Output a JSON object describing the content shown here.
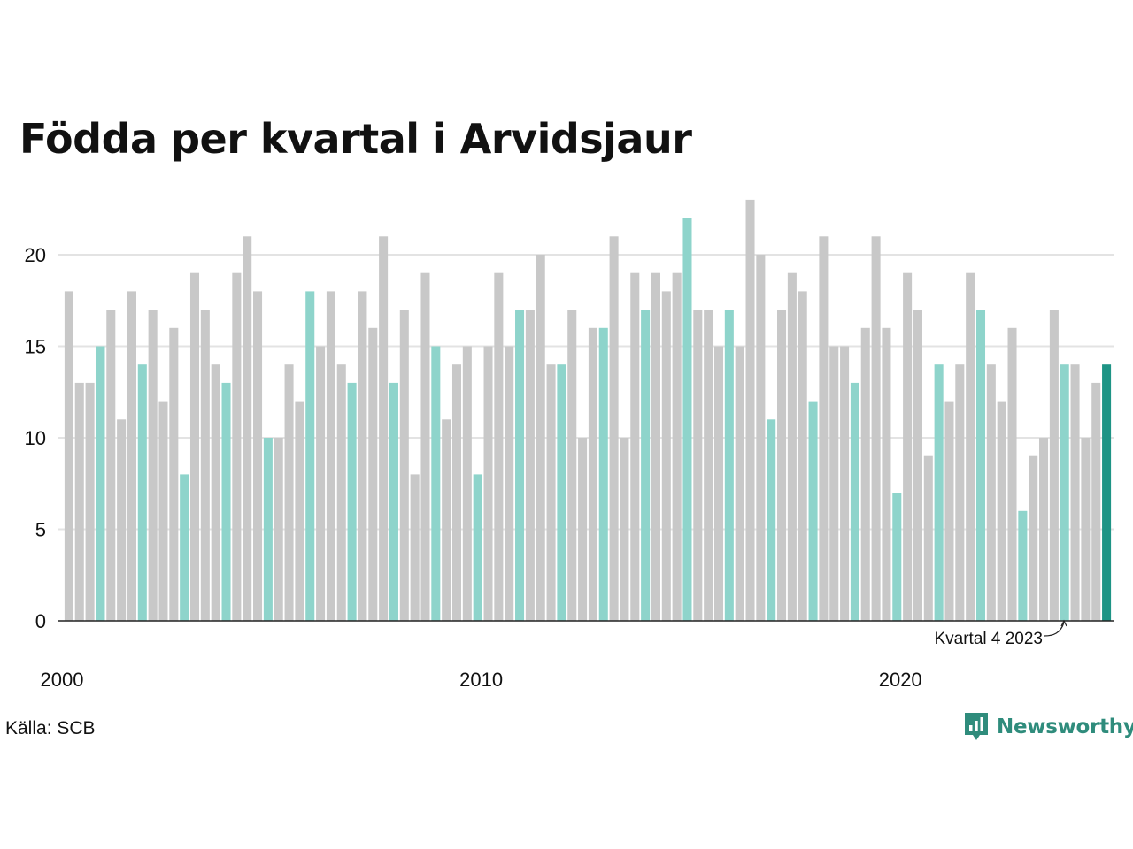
{
  "title": "Födda per kvartal i Arvidsjaur",
  "source": "Källa: SCB",
  "brand": "Newsworthy",
  "colors": {
    "bar_default": "#c8c8c8",
    "bar_q4": "#8ed4cb",
    "bar_latest": "#1e9485",
    "grid": "#e3e3e3",
    "brand": "#2f8c7c"
  },
  "chart_data": {
    "type": "bar",
    "title": "Födda per kvartal i Arvidsjaur",
    "xlabel": "",
    "ylabel": "",
    "ylim": [
      0,
      23
    ],
    "yticks": [
      0,
      5,
      10,
      15,
      20
    ],
    "x_tick_labels": [
      "2000",
      "2010",
      "2020"
    ],
    "grid": true,
    "highlight_rule": "fourth quarter of each year highlighted; latest quarter darker",
    "annotation": "Kvartal 4 2023",
    "categories": [
      "2000 K1",
      "2000 K2",
      "2000 K3",
      "2000 K4",
      "2001 K1",
      "2001 K2",
      "2001 K3",
      "2001 K4",
      "2002 K1",
      "2002 K2",
      "2002 K3",
      "2002 K4",
      "2003 K1",
      "2003 K2",
      "2003 K3",
      "2003 K4",
      "2004 K1",
      "2004 K2",
      "2004 K3",
      "2004 K4",
      "2005 K1",
      "2005 K2",
      "2005 K3",
      "2005 K4",
      "2006 K1",
      "2006 K2",
      "2006 K3",
      "2006 K4",
      "2007 K1",
      "2007 K2",
      "2007 K3",
      "2007 K4",
      "2008 K1",
      "2008 K2",
      "2008 K3",
      "2008 K4",
      "2009 K1",
      "2009 K2",
      "2009 K3",
      "2009 K4",
      "2010 K1",
      "2010 K2",
      "2010 K3",
      "2010 K4",
      "2011 K1",
      "2011 K2",
      "2011 K3",
      "2011 K4",
      "2012 K1",
      "2012 K2",
      "2012 K3",
      "2012 K4",
      "2013 K1",
      "2013 K2",
      "2013 K3",
      "2013 K4",
      "2014 K1",
      "2014 K2",
      "2014 K3",
      "2014 K4",
      "2015 K1",
      "2015 K2",
      "2015 K3",
      "2015 K4",
      "2016 K1",
      "2016 K2",
      "2016 K3",
      "2016 K4",
      "2017 K1",
      "2017 K2",
      "2017 K3",
      "2017 K4",
      "2018 K1",
      "2018 K2",
      "2018 K3",
      "2018 K4",
      "2019 K1",
      "2019 K2",
      "2019 K3",
      "2019 K4",
      "2020 K1",
      "2020 K2",
      "2020 K3",
      "2020 K4",
      "2021 K1",
      "2021 K2",
      "2021 K3",
      "2021 K4",
      "2022 K1",
      "2022 K2",
      "2022 K3",
      "2022 K4",
      "2023 K1",
      "2023 K2",
      "2023 K3",
      "2023 K4"
    ],
    "values": [
      18,
      13,
      13,
      15,
      17,
      11,
      18,
      14,
      17,
      12,
      16,
      8,
      19,
      17,
      14,
      13,
      19,
      21,
      18,
      10,
      10,
      14,
      12,
      18,
      15,
      18,
      14,
      13,
      18,
      16,
      21,
      13,
      17,
      8,
      19,
      15,
      11,
      14,
      15,
      8,
      15,
      19,
      15,
      17,
      17,
      20,
      14,
      14,
      17,
      10,
      16,
      16,
      21,
      10,
      19,
      17,
      19,
      18,
      19,
      22,
      17,
      17,
      15,
      17,
      15,
      23,
      20,
      11,
      17,
      19,
      18,
      12,
      21,
      15,
      15,
      13,
      16,
      21,
      16,
      7,
      19,
      17,
      9,
      14,
      12,
      14,
      19,
      17,
      14,
      12,
      16,
      6,
      9,
      10,
      17,
      14
    ],
    "trailing_values": [
      14,
      10,
      13,
      14
    ]
  }
}
